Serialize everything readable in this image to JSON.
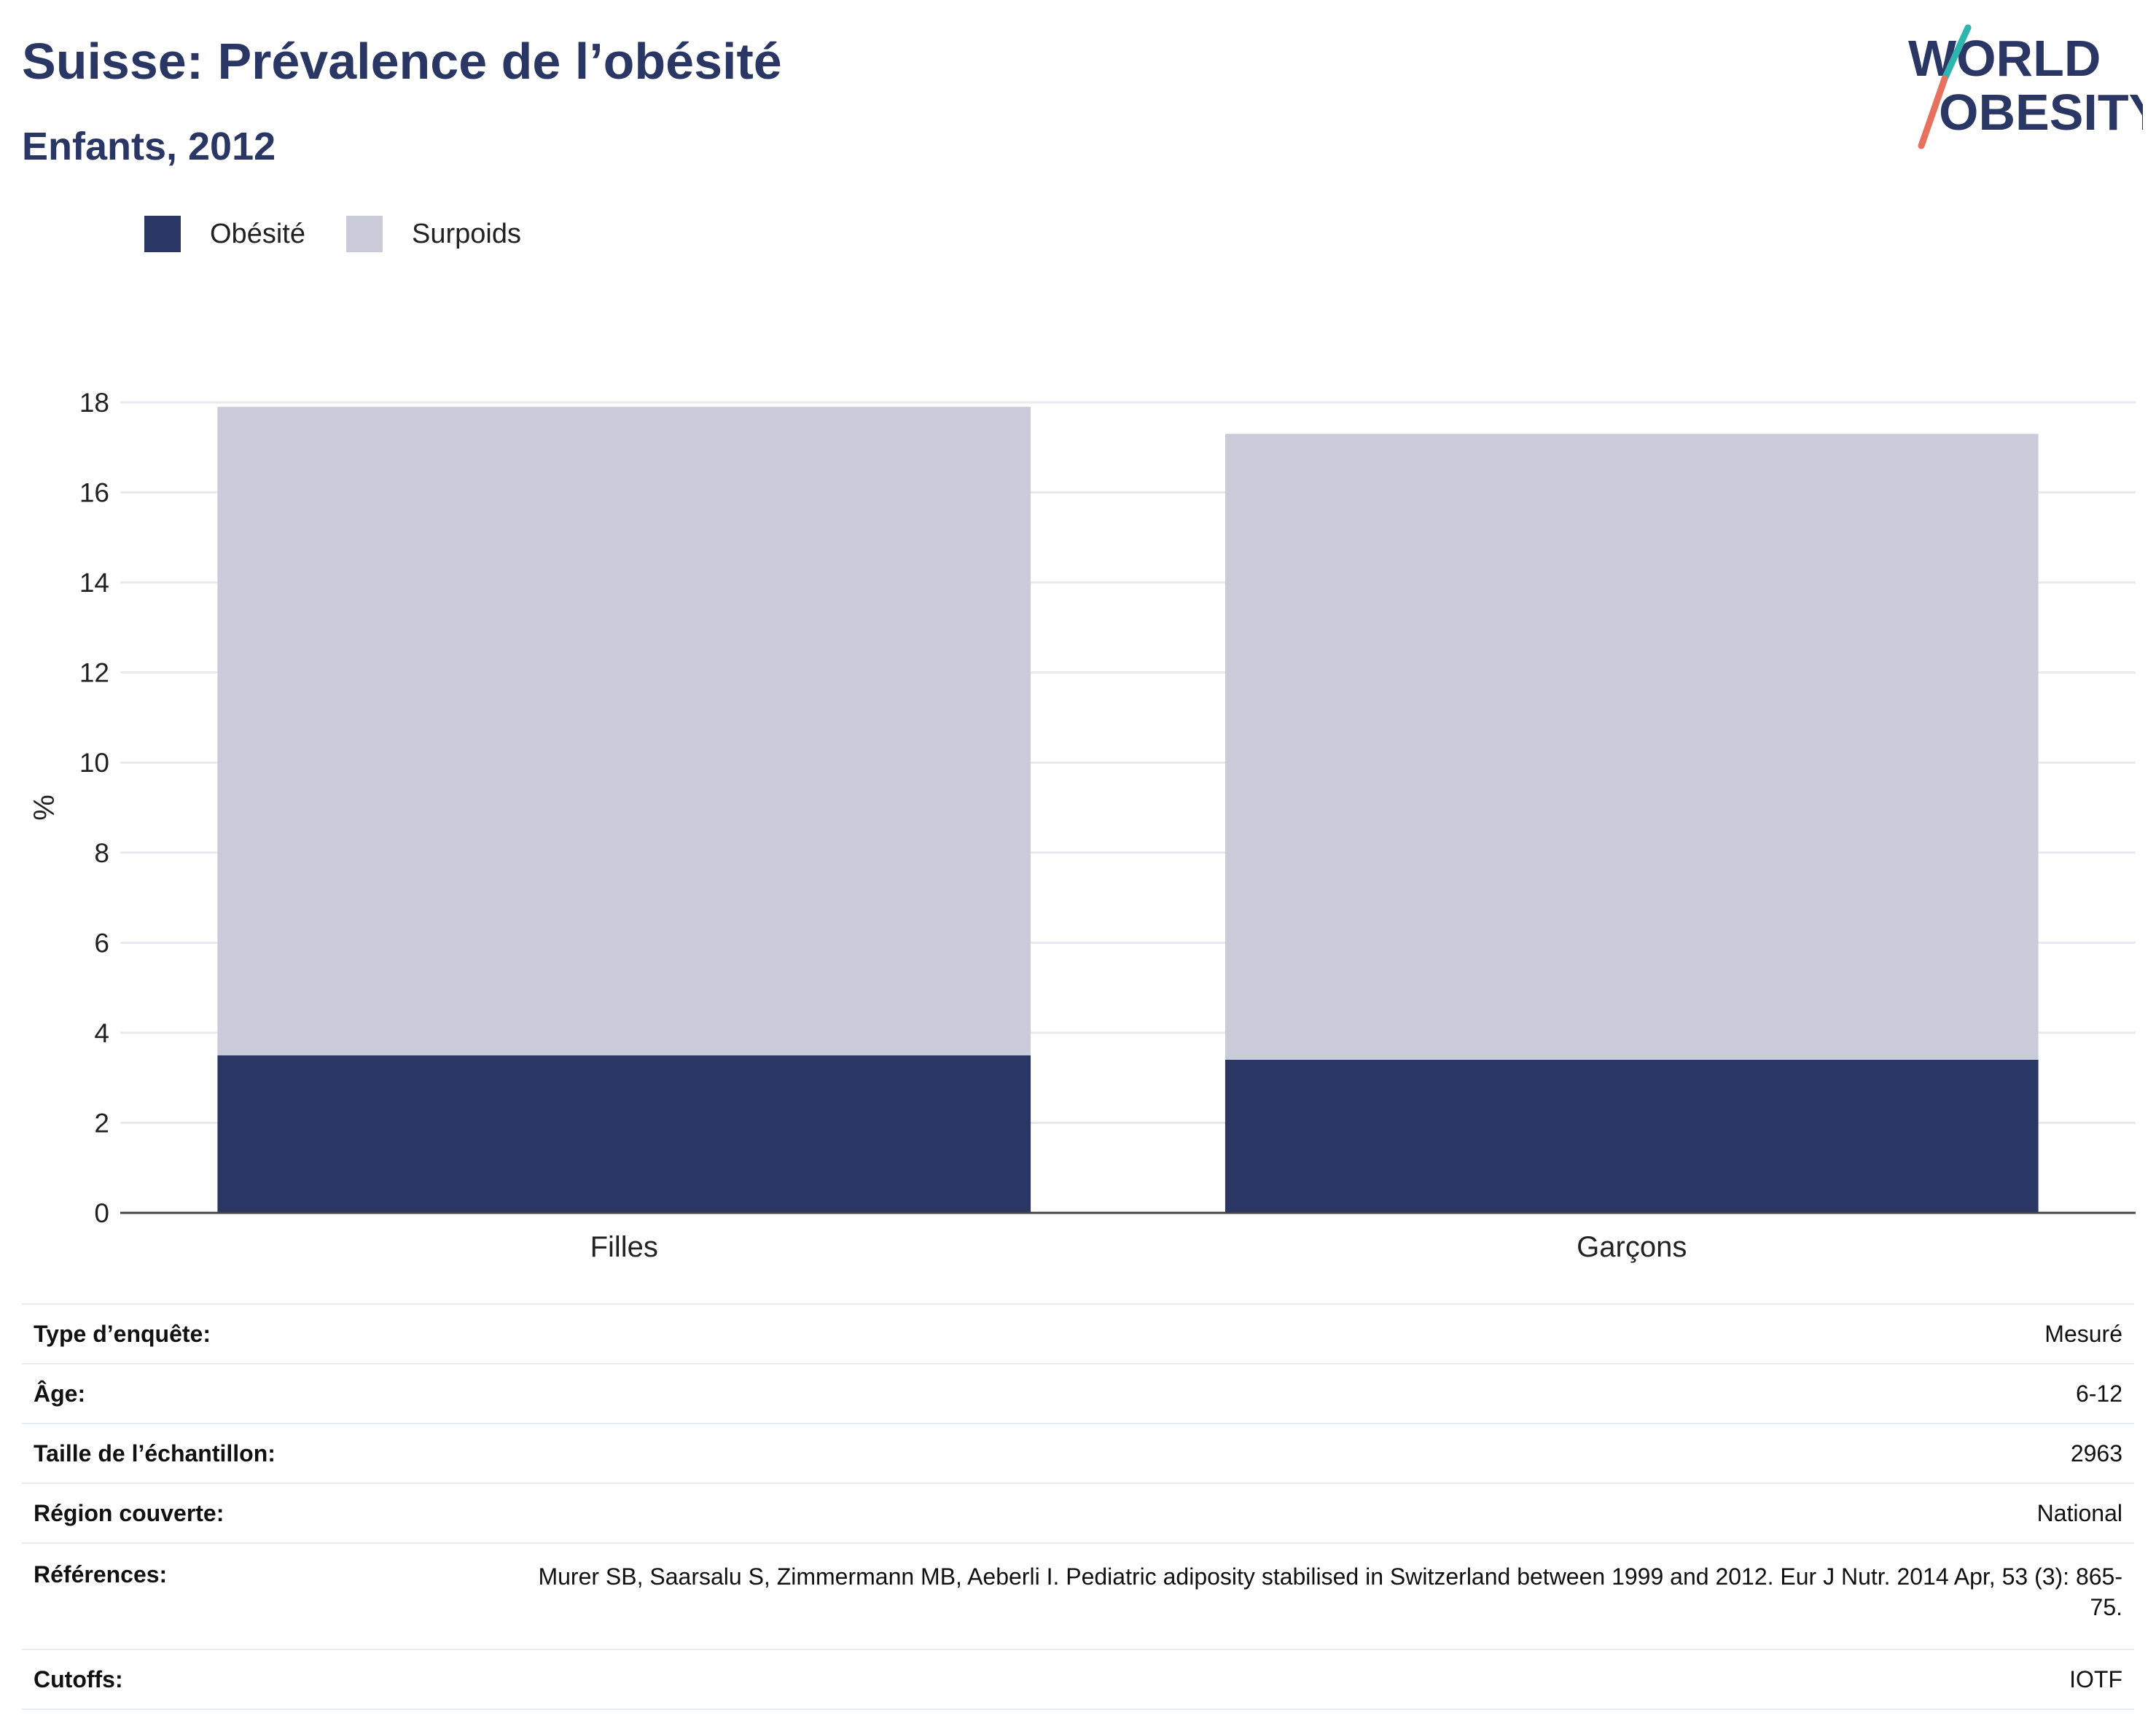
{
  "header": {
    "title": "Suisse: Prévalence de l’obésité",
    "subtitle": "Enfants, 2012"
  },
  "logo": {
    "line1": "WORLD",
    "line2": "OBESITY"
  },
  "legend": [
    {
      "label": "Obésité",
      "color": "#2a3664"
    },
    {
      "label": "Surpoids",
      "color": "#c9ccd8"
    }
  ],
  "chart_data": {
    "type": "bar",
    "stacked": true,
    "categories": [
      "Filles",
      "Garçons"
    ],
    "series": [
      {
        "name": "Obésité",
        "values": [
          3.5,
          3.4
        ],
        "color": "#2a3664"
      },
      {
        "name": "Surpoids",
        "values": [
          14.4,
          13.9
        ],
        "color": "#c9ccd8"
      }
    ],
    "ylabel": "%",
    "ylim": [
      0,
      18
    ],
    "yticks": [
      0,
      2,
      4,
      6,
      8,
      10,
      12,
      14,
      16,
      18
    ],
    "grid": true,
    "legend_position": "top-left"
  },
  "details": [
    {
      "key": "Type d’enquête:",
      "value": "Mesuré"
    },
    {
      "key": "Âge:",
      "value": "6-12"
    },
    {
      "key": "Taille de l’échantillon:",
      "value": "2963"
    },
    {
      "key": "Région couverte:",
      "value": "National"
    },
    {
      "key": "Références:",
      "value": "Murer SB, Saarsalu S, Zimmermann MB, Aeberli I. Pediatric adiposity stabilised in Switzerland between 1999 and 2012. Eur J Nutr. 2014 Apr, 53 (3): 865-75."
    },
    {
      "key": "Cutoffs:",
      "value": "IOTF"
    }
  ]
}
